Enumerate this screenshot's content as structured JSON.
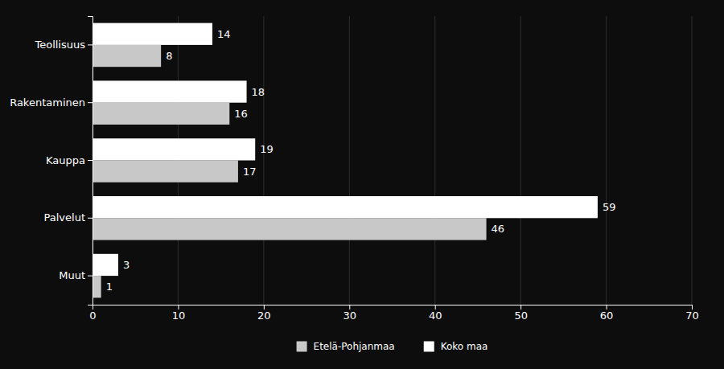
{
  "chart_data": {
    "type": "bar",
    "orientation": "horizontal",
    "categories": [
      "Muut",
      "Palvelut",
      "Kauppa",
      "Rakentaminen",
      "Teollisuus"
    ],
    "series": [
      {
        "name": "Etelä-Pohjanmaa",
        "color": "#c8c8c8",
        "values": [
          1,
          46,
          17,
          16,
          8
        ]
      },
      {
        "name": "Koko maa",
        "color": "#ffffff",
        "values": [
          3,
          59,
          19,
          18,
          14
        ]
      }
    ],
    "xlim": [
      0,
      70
    ],
    "xticks": [
      0,
      10,
      20,
      30,
      40,
      50,
      60,
      70
    ],
    "grid": true,
    "data_labels": true,
    "legend": "bottom"
  }
}
